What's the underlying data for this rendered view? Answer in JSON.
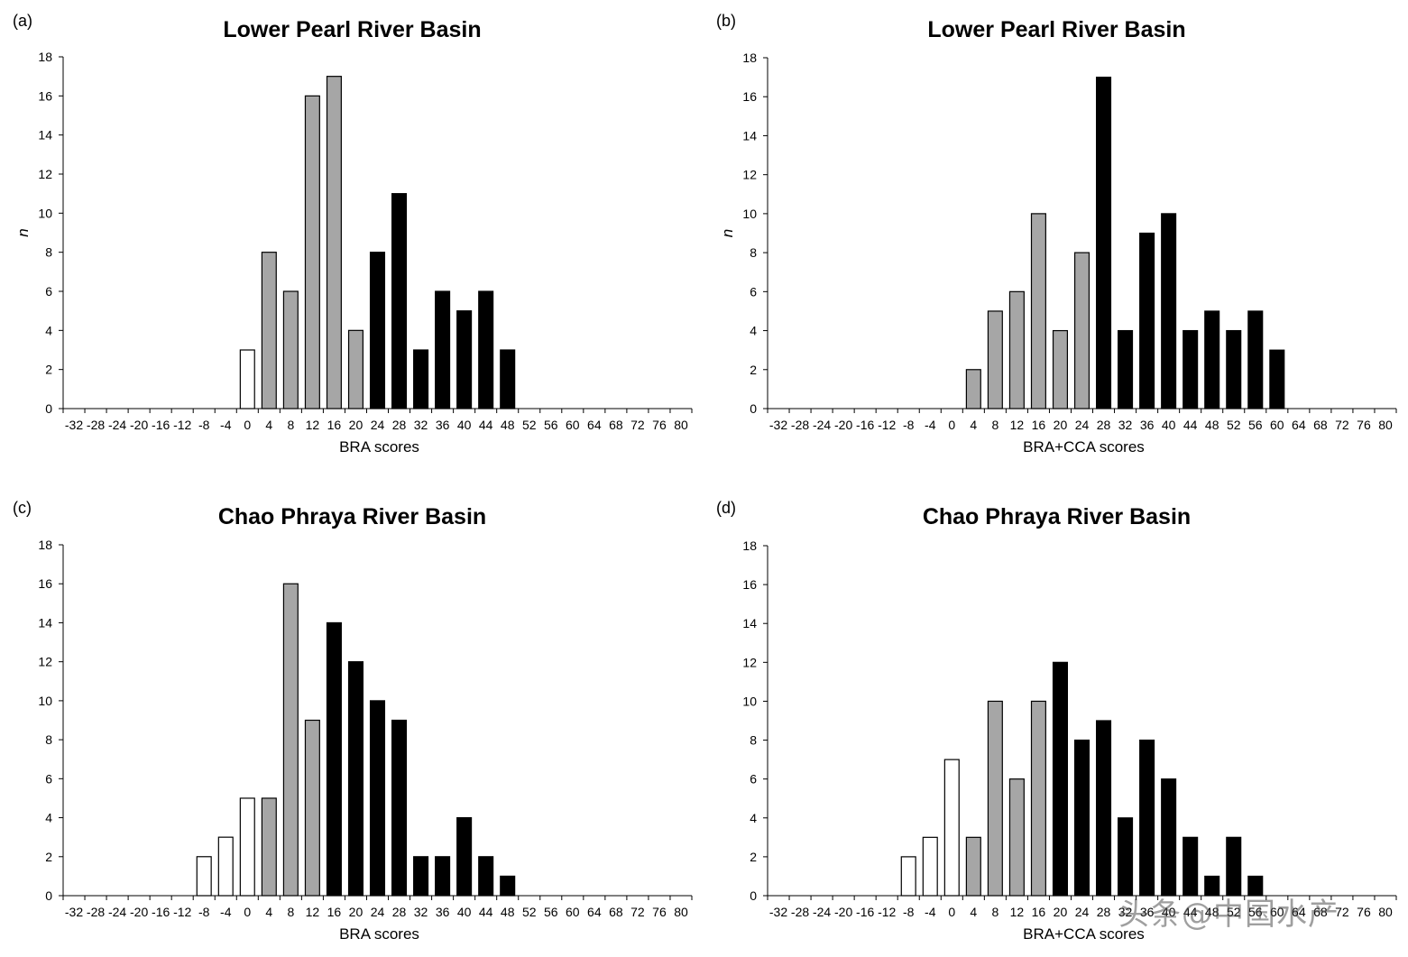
{
  "colors": {
    "white": "#ffffff",
    "gray": "#a6a6a6",
    "black": "#000000",
    "stroke": "#000000"
  },
  "watermark": "头条@中国水产",
  "chart_data": [
    {
      "type": "bar",
      "panel_label": "(a)",
      "title": "Lower Pearl River Basin",
      "xlabel": "BRA scores",
      "ylabel": "n",
      "ylim": [
        0,
        18
      ],
      "yticks": [
        0,
        2,
        4,
        6,
        8,
        10,
        12,
        14,
        16,
        18
      ],
      "categories": [
        "-32",
        "-28",
        "-24",
        "-20",
        "-16",
        "-12",
        "-8",
        "-4",
        "0",
        "4",
        "8",
        "12",
        "16",
        "20",
        "24",
        "28",
        "32",
        "36",
        "40",
        "44",
        "48",
        "52",
        "56",
        "60",
        "64",
        "68",
        "72",
        "76",
        "80"
      ],
      "values": [
        0,
        0,
        0,
        0,
        0,
        0,
        0,
        0,
        3,
        8,
        6,
        16,
        17,
        4,
        8,
        11,
        3,
        6,
        5,
        6,
        3,
        0,
        0,
        0,
        0,
        0,
        0,
        0,
        0
      ],
      "bar_colors": [
        "white",
        "white",
        "white",
        "white",
        "white",
        "white",
        "white",
        "white",
        "white",
        "gray",
        "gray",
        "gray",
        "gray",
        "gray",
        "black",
        "black",
        "black",
        "black",
        "black",
        "black",
        "black",
        "black",
        "black",
        "black",
        "black",
        "black",
        "black",
        "black",
        "black"
      ]
    },
    {
      "type": "bar",
      "panel_label": "(b)",
      "title": "Lower Pearl River Basin",
      "xlabel": "BRA+CCA scores",
      "ylabel": "n",
      "ylim": [
        0,
        18
      ],
      "yticks": [
        0,
        2,
        4,
        6,
        8,
        10,
        12,
        14,
        16,
        18
      ],
      "categories": [
        "-32",
        "-28",
        "-24",
        "-20",
        "-16",
        "-12",
        "-8",
        "-4",
        "0",
        "4",
        "8",
        "12",
        "16",
        "20",
        "24",
        "28",
        "32",
        "36",
        "40",
        "44",
        "48",
        "52",
        "56",
        "60",
        "64",
        "68",
        "72",
        "76",
        "80"
      ],
      "values": [
        0,
        0,
        0,
        0,
        0,
        0,
        0,
        0,
        0,
        2,
        5,
        6,
        10,
        4,
        8,
        17,
        4,
        9,
        10,
        4,
        5,
        4,
        5,
        3,
        0,
        0,
        0,
        0,
        0
      ],
      "bar_colors": [
        "white",
        "white",
        "white",
        "white",
        "white",
        "white",
        "white",
        "white",
        "white",
        "gray",
        "gray",
        "gray",
        "gray",
        "gray",
        "gray",
        "black",
        "black",
        "black",
        "black",
        "black",
        "black",
        "black",
        "black",
        "black",
        "black",
        "black",
        "black",
        "black",
        "black"
      ]
    },
    {
      "type": "bar",
      "panel_label": "(c)",
      "title": "Chao Phraya River Basin",
      "xlabel": "BRA scores",
      "ylabel": "",
      "ylim": [
        0,
        18
      ],
      "yticks": [
        0,
        2,
        4,
        6,
        8,
        10,
        12,
        14,
        16,
        18
      ],
      "categories": [
        "-32",
        "-28",
        "-24",
        "-20",
        "-16",
        "-12",
        "-8",
        "-4",
        "0",
        "4",
        "8",
        "12",
        "16",
        "20",
        "24",
        "28",
        "32",
        "36",
        "40",
        "44",
        "48",
        "52",
        "56",
        "60",
        "64",
        "68",
        "72",
        "76",
        "80"
      ],
      "values": [
        0,
        0,
        0,
        0,
        0,
        0,
        2,
        3,
        5,
        5,
        16,
        9,
        14,
        12,
        10,
        9,
        2,
        2,
        4,
        2,
        1,
        0,
        0,
        0,
        0,
        0,
        0,
        0,
        0
      ],
      "bar_colors": [
        "white",
        "white",
        "white",
        "white",
        "white",
        "white",
        "white",
        "white",
        "white",
        "gray",
        "gray",
        "gray",
        "black",
        "black",
        "black",
        "black",
        "black",
        "black",
        "black",
        "black",
        "black",
        "black",
        "black",
        "black",
        "black",
        "black",
        "black",
        "black",
        "black"
      ]
    },
    {
      "type": "bar",
      "panel_label": "(d)",
      "title": "Chao Phraya River Basin",
      "xlabel": "BRA+CCA scores",
      "ylabel": "",
      "ylim": [
        0,
        18
      ],
      "yticks": [
        0,
        2,
        4,
        6,
        8,
        10,
        12,
        14,
        16,
        18
      ],
      "categories": [
        "-32",
        "-28",
        "-24",
        "-20",
        "-16",
        "-12",
        "-8",
        "-4",
        "0",
        "4",
        "8",
        "12",
        "16",
        "20",
        "24",
        "28",
        "32",
        "36",
        "40",
        "44",
        "48",
        "52",
        "56",
        "60",
        "64",
        "68",
        "72",
        "76",
        "80"
      ],
      "values": [
        0,
        0,
        0,
        0,
        0,
        0,
        2,
        3,
        7,
        3,
        10,
        6,
        10,
        12,
        8,
        9,
        4,
        8,
        6,
        3,
        1,
        3,
        1,
        0,
        0,
        0,
        0,
        0,
        0
      ],
      "bar_colors": [
        "white",
        "white",
        "white",
        "white",
        "white",
        "white",
        "white",
        "white",
        "white",
        "gray",
        "gray",
        "gray",
        "gray",
        "black",
        "black",
        "black",
        "black",
        "black",
        "black",
        "black",
        "black",
        "black",
        "black",
        "black",
        "black",
        "black",
        "black",
        "black",
        "black"
      ]
    }
  ]
}
